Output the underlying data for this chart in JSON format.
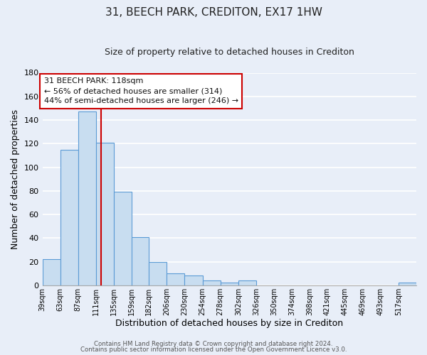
{
  "title": "31, BEECH PARK, CREDITON, EX17 1HW",
  "subtitle": "Size of property relative to detached houses in Crediton",
  "xlabel": "Distribution of detached houses by size in Crediton",
  "ylabel": "Number of detached properties",
  "footer_line1": "Contains HM Land Registry data © Crown copyright and database right 2024.",
  "footer_line2": "Contains public sector information licensed under the Open Government Licence v3.0.",
  "bin_edges": [
    39,
    63,
    87,
    111,
    135,
    159,
    182,
    206,
    230,
    254,
    278,
    302,
    326,
    350,
    374,
    398,
    421,
    445,
    469,
    493,
    517
  ],
  "bin_labels": [
    "39sqm",
    "63sqm",
    "87sqm",
    "111sqm",
    "135sqm",
    "159sqm",
    "182sqm",
    "206sqm",
    "230sqm",
    "254sqm",
    "278sqm",
    "302sqm",
    "326sqm",
    "350sqm",
    "374sqm",
    "398sqm",
    "421sqm",
    "445sqm",
    "469sqm",
    "493sqm",
    "517sqm"
  ],
  "counts": [
    22,
    115,
    147,
    121,
    79,
    41,
    20,
    10,
    8,
    4,
    2,
    4,
    0,
    0,
    0,
    0,
    0,
    0,
    0,
    0,
    2
  ],
  "bar_color": "#c8ddf0",
  "bar_edge_color": "#5b9bd5",
  "vline_x": 118,
  "vline_color": "#cc0000",
  "ylim": [
    0,
    180
  ],
  "yticks": [
    0,
    20,
    40,
    60,
    80,
    100,
    120,
    140,
    160,
    180
  ],
  "annotation_title": "31 BEECH PARK: 118sqm",
  "annotation_line1": "← 56% of detached houses are smaller (314)",
  "annotation_line2": "44% of semi-detached houses are larger (246) →",
  "annotation_box_color": "#ffffff",
  "annotation_box_edge_color": "#cc0000",
  "background_color": "#e8eef8",
  "grid_color": "#ffffff",
  "title_fontsize": 11,
  "subtitle_fontsize": 9
}
